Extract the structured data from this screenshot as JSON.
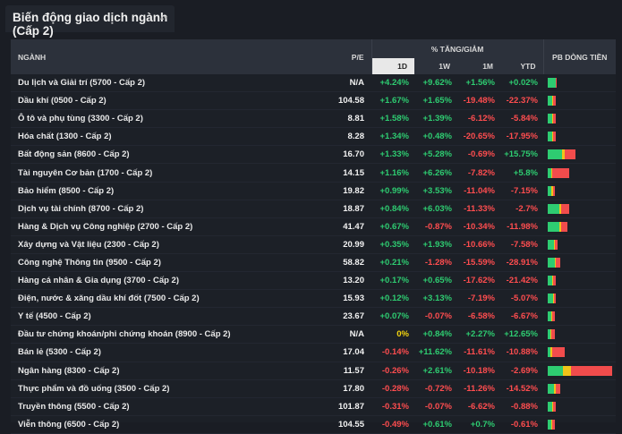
{
  "panel": {
    "title": "Biến động giao dịch ngành (Cấp 2)",
    "caret": "▴▾"
  },
  "header": {
    "sector": "NGÀNH",
    "pe": "P/E",
    "pct_group": "% TĂNG/GIẢM",
    "d1": "1D",
    "w1": "1W",
    "m1": "1M",
    "ytd": "YTD",
    "flow": "PB DÒNG TIỀN"
  },
  "colors": {
    "green": "#2ecc71",
    "red": "#ff4d4f",
    "yellow": "#f5d60f",
    "flow_green": "#2ecc71",
    "flow_yellow": "#f0c419",
    "flow_red": "#f14c4c"
  },
  "rows": [
    {
      "name": "Du lịch và Giải trí (5700 - Cấp 2)",
      "pe": "N/A",
      "d1": "+4.24%",
      "w1": "+9.62%",
      "m1": "+1.56%",
      "ytd": "+0.02%",
      "flow": [
        0.98,
        0.0,
        0.02
      ],
      "scale": 0.13
    },
    {
      "name": "Dầu khí (0500 - Cấp 2)",
      "pe": "104.58",
      "d1": "+1.67%",
      "w1": "+1.65%",
      "m1": "-19.48%",
      "ytd": "-22.37%",
      "flow": [
        0.55,
        0.1,
        0.35
      ],
      "scale": 0.13
    },
    {
      "name": "Ô tô và phụ tùng (3300 - Cấp 2)",
      "pe": "8.81",
      "d1": "+1.58%",
      "w1": "+1.39%",
      "m1": "-6.12%",
      "ytd": "-5.84%",
      "flow": [
        0.55,
        0.12,
        0.33
      ],
      "scale": 0.13
    },
    {
      "name": "Hóa chất (1300 - Cấp 2)",
      "pe": "8.28",
      "d1": "+1.34%",
      "w1": "+0.48%",
      "m1": "-20.65%",
      "ytd": "-17.95%",
      "flow": [
        0.58,
        0.12,
        0.3
      ],
      "scale": 0.13
    },
    {
      "name": "Bất động sản (8600 - Cấp 2)",
      "pe": "16.70",
      "d1": "+1.33%",
      "w1": "+5.28%",
      "m1": "-0.69%",
      "ytd": "+15.75%",
      "flow": [
        0.52,
        0.1,
        0.38
      ],
      "scale": 0.43
    },
    {
      "name": "Tài nguyên Cơ bản (1700 - Cấp 2)",
      "pe": "14.15",
      "d1": "+1.16%",
      "w1": "+6.26%",
      "m1": "-7.82%",
      "ytd": "+5.8%",
      "flow": [
        0.18,
        0.04,
        0.78
      ],
      "scale": 0.34
    },
    {
      "name": "Bảo hiểm (8500 - Cấp 2)",
      "pe": "19.82",
      "d1": "+0.99%",
      "w1": "+3.53%",
      "m1": "-11.04%",
      "ytd": "-7.15%",
      "flow": [
        0.55,
        0.15,
        0.3
      ],
      "scale": 0.11
    },
    {
      "name": "Dịch vụ tài chính (8700 - Cấp 2)",
      "pe": "18.87",
      "d1": "+0.84%",
      "w1": "+6.03%",
      "m1": "-11.33%",
      "ytd": "-2.7%",
      "flow": [
        0.53,
        0.12,
        0.35
      ],
      "scale": 0.33
    },
    {
      "name": "Hàng & Dịch vụ Công nghiệp (2700 - Cấp 2)",
      "pe": "41.47",
      "d1": "+0.67%",
      "w1": "-0.87%",
      "m1": "-10.34%",
      "ytd": "-11.98%",
      "flow": [
        0.62,
        0.08,
        0.3
      ],
      "scale": 0.3
    },
    {
      "name": "Xây dựng và Vật liệu (2300 - Cấp 2)",
      "pe": "20.99",
      "d1": "+0.35%",
      "w1": "+1.93%",
      "m1": "-10.66%",
      "ytd": "-7.58%",
      "flow": [
        0.6,
        0.12,
        0.28
      ],
      "scale": 0.15
    },
    {
      "name": "Công nghệ Thông tin (9500 - Cấp 2)",
      "pe": "58.82",
      "d1": "+0.21%",
      "w1": "-1.28%",
      "m1": "-15.59%",
      "ytd": "-28.91%",
      "flow": [
        0.6,
        0.08,
        0.32
      ],
      "scale": 0.19
    },
    {
      "name": "Hàng cá nhân & Gia dụng (3700 - Cấp 2)",
      "pe": "13.20",
      "d1": "+0.17%",
      "w1": "+0.65%",
      "m1": "-17.62%",
      "ytd": "-21.42%",
      "flow": [
        0.55,
        0.12,
        0.33
      ],
      "scale": 0.13
    },
    {
      "name": "Điện, nước & xăng dầu khí đốt (7500 - Cấp 2)",
      "pe": "15.93",
      "d1": "+0.12%",
      "w1": "+3.13%",
      "m1": "-7.19%",
      "ytd": "-5.07%",
      "flow": [
        0.6,
        0.12,
        0.28
      ],
      "scale": 0.13
    },
    {
      "name": "Y tế (4500 - Cấp 2)",
      "pe": "23.67",
      "d1": "+0.07%",
      "w1": "-0.07%",
      "m1": "-6.58%",
      "ytd": "-6.67%",
      "flow": [
        0.45,
        0.15,
        0.4
      ],
      "scale": 0.11
    },
    {
      "name": "Đầu tư chứng khoán/phi chứng khoán (8900 - Cấp 2)",
      "pe": "N/A",
      "d1": "0%",
      "w1": "+0.84%",
      "m1": "+2.27%",
      "ytd": "+12.65%",
      "flow": [
        0.4,
        0.15,
        0.45
      ],
      "scale": 0.11
    },
    {
      "name": "Bán lẻ (5300 - Cấp 2)",
      "pe": "17.04",
      "d1": "-0.14%",
      "w1": "+11.62%",
      "m1": "-11.61%",
      "ytd": "-10.88%",
      "flow": [
        0.15,
        0.1,
        0.75
      ],
      "scale": 0.26
    },
    {
      "name": "Ngân hàng (8300 - Cấp 2)",
      "pe": "11.57",
      "d1": "-0.26%",
      "w1": "+2.61%",
      "m1": "-10.18%",
      "ytd": "-2.69%",
      "flow": [
        0.24,
        0.12,
        0.64
      ],
      "scale": 1.0
    },
    {
      "name": "Thực phẩm và đồ uống (3500 - Cấp 2)",
      "pe": "17.80",
      "d1": "-0.28%",
      "w1": "-0.72%",
      "m1": "-11.26%",
      "ytd": "-14.52%",
      "flow": [
        0.5,
        0.15,
        0.35
      ],
      "scale": 0.2
    },
    {
      "name": "Truyền thông (5500 - Cấp 2)",
      "pe": "101.87",
      "d1": "-0.31%",
      "w1": "-0.07%",
      "m1": "-6.62%",
      "ytd": "-0.88%",
      "flow": [
        0.55,
        0.1,
        0.35
      ],
      "scale": 0.13
    },
    {
      "name": "Viễn thông (6500 - Cấp 2)",
      "pe": "104.55",
      "d1": "-0.49%",
      "w1": "+0.61%",
      "m1": "+0.7%",
      "ytd": "-0.61%",
      "flow": [
        0.55,
        0.1,
        0.35
      ],
      "scale": 0.11
    }
  ]
}
